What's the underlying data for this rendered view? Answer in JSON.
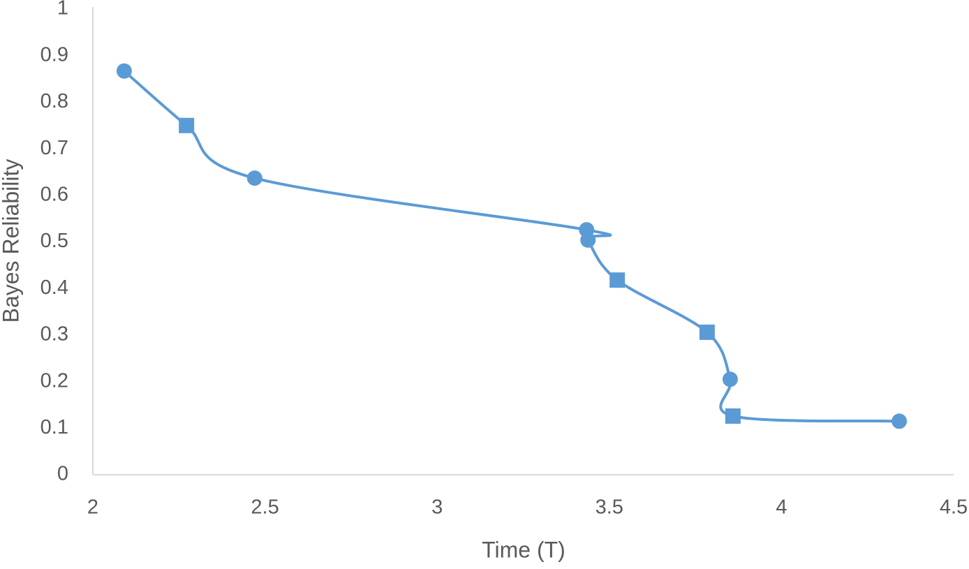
{
  "chart_data": {
    "type": "line",
    "x_label": "Time (T)",
    "y_label": "Bayes Reliability",
    "series": [
      {
        "color": "#5b9bd5",
        "x": [
          2.091,
          2.272,
          2.47,
          3.434,
          3.438,
          3.523,
          3.784,
          3.851,
          3.859,
          4.342
        ],
        "values": [
          0.867,
          0.75,
          0.637,
          0.526,
          0.504,
          0.418,
          0.306,
          0.205,
          0.126,
          0.115
        ],
        "markers": [
          "circle",
          "square",
          "circle",
          "circle",
          "circle",
          "square",
          "square",
          "circle",
          "square",
          "circle"
        ]
      }
    ],
    "xlim": [
      2,
      4.5
    ],
    "xticks": [
      2,
      2.5,
      3,
      3.5,
      4,
      4.5
    ],
    "ylim": [
      0,
      1
    ],
    "yticks": [
      0,
      0.1,
      0.2,
      0.3,
      0.4,
      0.5,
      0.6,
      0.7,
      0.8,
      0.9,
      1
    ],
    "smooth": true,
    "grid": false
  }
}
